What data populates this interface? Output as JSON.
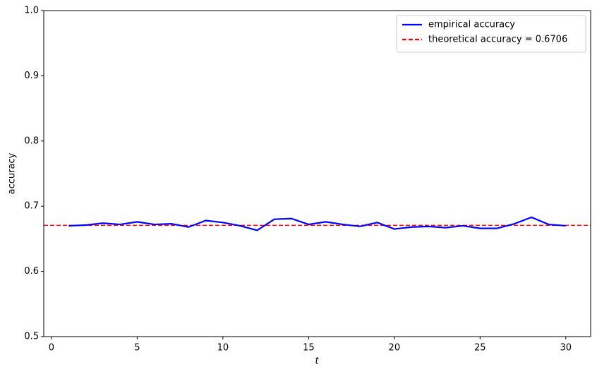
{
  "chart_data": {
    "type": "line",
    "x_label": "t",
    "y_label": "accuracy",
    "x": [
      1,
      2,
      3,
      4,
      5,
      6,
      7,
      8,
      9,
      10,
      11,
      12,
      13,
      14,
      15,
      16,
      17,
      18,
      19,
      20,
      21,
      22,
      23,
      24,
      25,
      26,
      27,
      28,
      29,
      30
    ],
    "series": [
      {
        "name": "empirical accuracy",
        "color": "#0000ff",
        "values": [
          0.67,
          0.671,
          0.674,
          0.672,
          0.676,
          0.672,
          0.673,
          0.668,
          0.678,
          0.675,
          0.67,
          0.663,
          0.68,
          0.681,
          0.672,
          0.676,
          0.672,
          0.669,
          0.675,
          0.665,
          0.668,
          0.669,
          0.667,
          0.67,
          0.666,
          0.666,
          0.673,
          0.683,
          0.672,
          0.67
        ]
      }
    ],
    "hlines": [
      {
        "name": "theoretical accuracy = 0.6706",
        "value": 0.6706,
        "color": "#ff0000",
        "dashed": true
      }
    ],
    "xlim": [
      -0.45,
      31.45
    ],
    "xticks": [
      0,
      5,
      10,
      15,
      20,
      25,
      30
    ],
    "ylim": [
      0.5,
      1.0
    ],
    "yticks": [
      0.5,
      0.6,
      0.7,
      0.8,
      0.9,
      {
        "value": 1.0,
        "label": "1.0"
      }
    ],
    "legend": "upper right"
  }
}
